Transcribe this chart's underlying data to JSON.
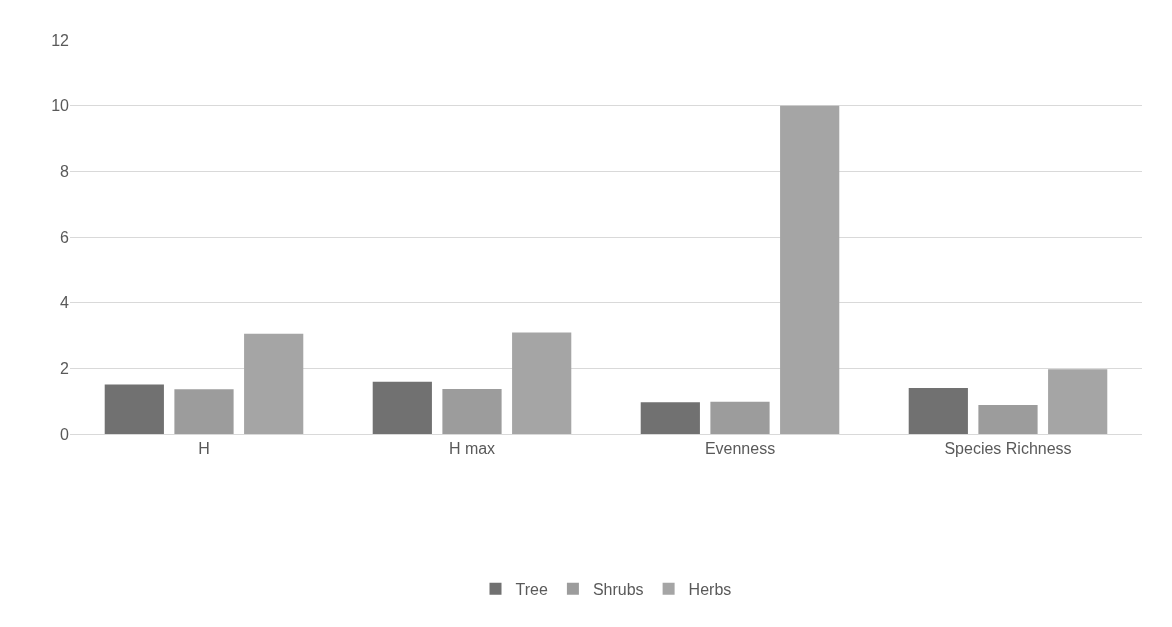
{
  "chart_data": {
    "type": "bar",
    "categories": [
      "H",
      "H max",
      "Evenness",
      "Species Richness"
    ],
    "series": [
      {
        "name": "Tree",
        "color": "#717171",
        "values": [
          1.51,
          1.59,
          0.97,
          1.4
        ]
      },
      {
        "name": "Shrubs",
        "color": "#9c9c9c",
        "values": [
          1.36,
          1.37,
          0.98,
          0.88
        ]
      },
      {
        "name": "Herbs",
        "color": "#a5a5a5",
        "values": [
          3.05,
          3.09,
          10.0,
          1.97
        ]
      }
    ],
    "ylim": [
      0,
      12
    ],
    "yticks": [
      0,
      2,
      4,
      6,
      8,
      10,
      12
    ],
    "grid": "y",
    "legend": "bottom"
  }
}
